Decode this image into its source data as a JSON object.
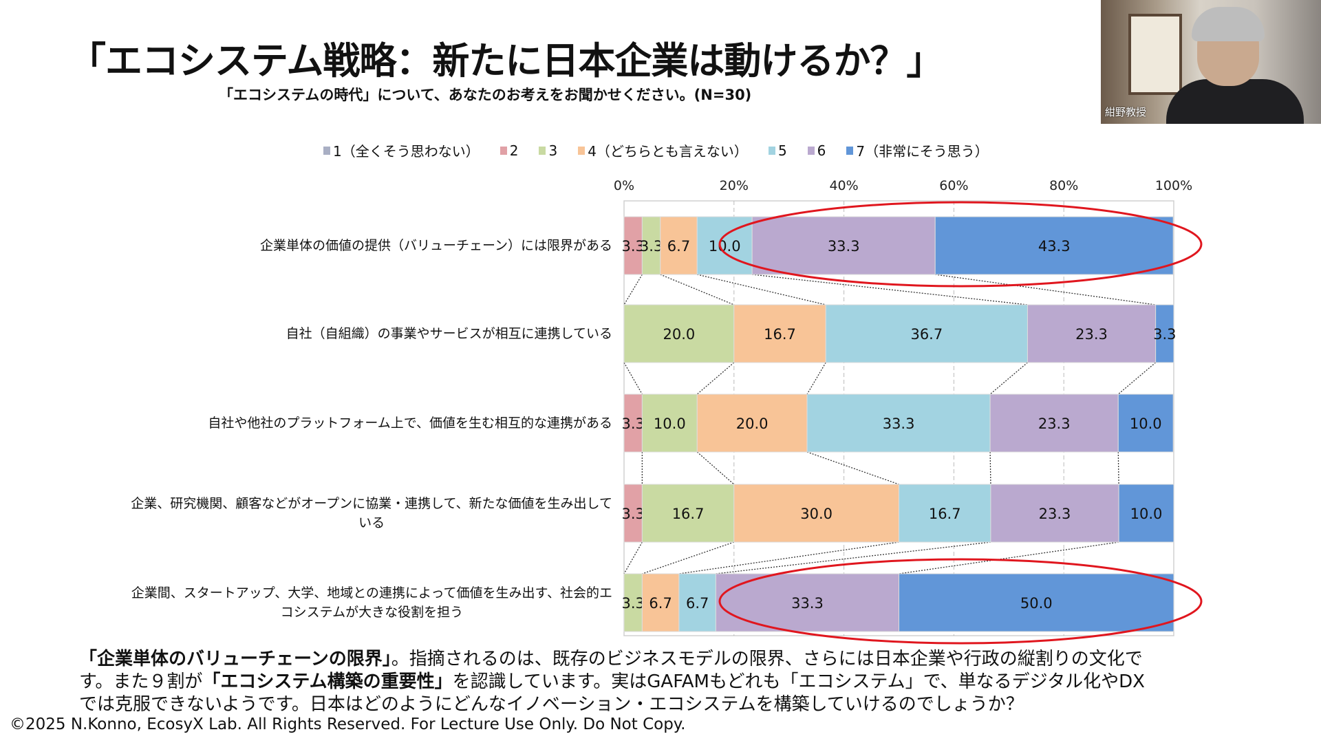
{
  "title": "「エコシステム戦略：新たに日本企業は動けるか？」",
  "subtitle": "「エコシステムの時代」について、あなたのお考えをお聞かせください。(N=30)",
  "webcam": {
    "name": "紺野教授"
  },
  "chart_data": {
    "type": "bar",
    "orientation": "horizontal-stacked-100",
    "categories": [
      "企業単体の価値の提供（バリューチェーン）には限界がある",
      "自社（自組織）の事業やサービスが相互に連携している",
      "自社や他社のプラットフォーム上で、価値を生む相互的な連携がある",
      "企業、研究機関、顧客などがオープンに協業・連携して、新たな価値を生み出している",
      "企業間、スタートアップ、大学、地域との連携によって価値を生み出す、社会的エコシステムが大きな役割を担う"
    ],
    "category_lines": [
      [
        "企業単体の価値の提供（バリューチェーン）には限界がある"
      ],
      [
        "自社（自組織）の事業やサービスが相互に連携している"
      ],
      [
        "自社や他社のプラットフォーム上で、価値を生む相互的な連携がある"
      ],
      [
        "企業、研究機関、顧客などがオープンに協業・連携して、新たな価値を生み出して",
        "いる"
      ],
      [
        "企業間、スタートアップ、大学、地域との連携によって価値を生み出す、社会的エ",
        "コシステムが大きな役割を担う"
      ]
    ],
    "series": [
      {
        "name": "1（全くそう思わない）",
        "color": "#A9AFC4",
        "values": [
          0,
          0,
          0,
          0,
          0
        ]
      },
      {
        "name": "2",
        "color": "#E1A1A6",
        "values": [
          3.3,
          0,
          3.3,
          3.3,
          0
        ]
      },
      {
        "name": "3",
        "color": "#C9DAA2",
        "values": [
          3.3,
          20.0,
          10.0,
          16.7,
          3.3
        ]
      },
      {
        "name": "4（どちらとも言えない）",
        "color": "#F8C497",
        "values": [
          6.7,
          16.7,
          20.0,
          30.0,
          6.7
        ]
      },
      {
        "name": "5",
        "color": "#A2D3E1",
        "values": [
          10.0,
          36.7,
          33.3,
          16.7,
          6.7
        ]
      },
      {
        "name": "6",
        "color": "#BAA9CF",
        "values": [
          33.3,
          23.3,
          23.3,
          23.3,
          33.3
        ]
      },
      {
        "name": "7（非常にそう思う）",
        "color": "#6196D8",
        "values": [
          43.3,
          3.3,
          10.0,
          10.0,
          50.0
        ]
      }
    ],
    "xticks": [
      "0%",
      "20%",
      "40%",
      "60%",
      "80%",
      "100%"
    ],
    "xlim": [
      0,
      100
    ],
    "grid": true,
    "legend_position": "top",
    "data_labels": true,
    "highlight_color": "#E0161E",
    "highlighted_rows": [
      0,
      4
    ],
    "highlighted_series": [
      "6",
      "7（非常にそう思う）"
    ]
  },
  "body_lines": [
    [
      {
        "t": "「企業単体のバリューチェーンの限界」",
        "b": true
      },
      {
        "t": "。指摘されるのは、既存のビジネスモデルの限界、さらには日本企業や行政の縦割りの文化で",
        "b": false
      }
    ],
    [
      {
        "t": "す。また９割が",
        "b": false
      },
      {
        "t": "「エコシステム構築の重要性」",
        "b": true
      },
      {
        "t": "を認識しています。実はGAFAMもどれも「エコシステム」で、単なるデジタル化やDX",
        "b": false
      }
    ],
    [
      {
        "t": "では克服できないようです。日本はどのようにどんなイノベーション・エコシステムを構築していけるのでしょうか？",
        "b": false
      }
    ]
  ],
  "copyright": "©2025 N.Konno, EcosyX Lab.  All Rights Reserved. For Lecture Use Only. Do Not Copy."
}
